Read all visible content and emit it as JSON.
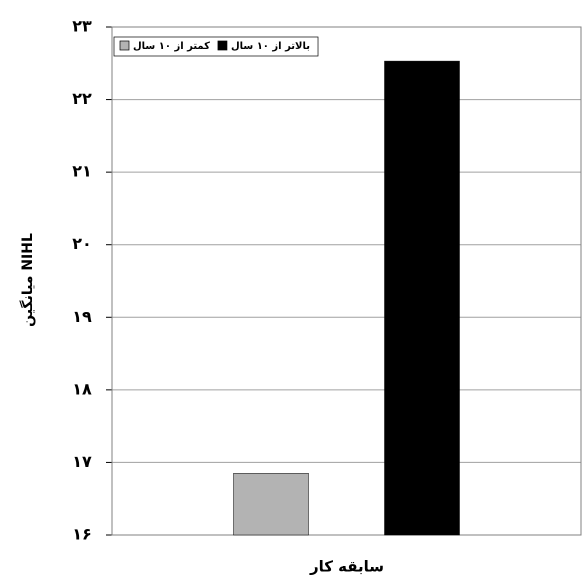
{
  "chart_data": {
    "type": "bar",
    "y_label": "میانگین NIHL",
    "x_label": "سابقه کار",
    "categories": [
      null
    ],
    "series": [
      {
        "name": "کمتر از ۱۰ سال",
        "color": "#b3b3b3",
        "values": [
          16.85
        ]
      },
      {
        "name": "بالاتر از ۱۰ سال",
        "color": "#000000",
        "values": [
          22.53
        ]
      }
    ],
    "ylim": [
      16,
      23
    ],
    "yticks": [
      {
        "value": 16,
        "label": "۱۶"
      },
      {
        "value": 17,
        "label": "۱۷"
      },
      {
        "value": 18,
        "label": "۱۸"
      },
      {
        "value": 19,
        "label": "۱۹"
      },
      {
        "value": 20,
        "label": "۲۰"
      },
      {
        "value": 21,
        "label": "۲۱"
      },
      {
        "value": 22,
        "label": "۲۲"
      },
      {
        "value": 23,
        "label": "۲۳"
      }
    ],
    "grid": true,
    "legend": "top-left"
  }
}
